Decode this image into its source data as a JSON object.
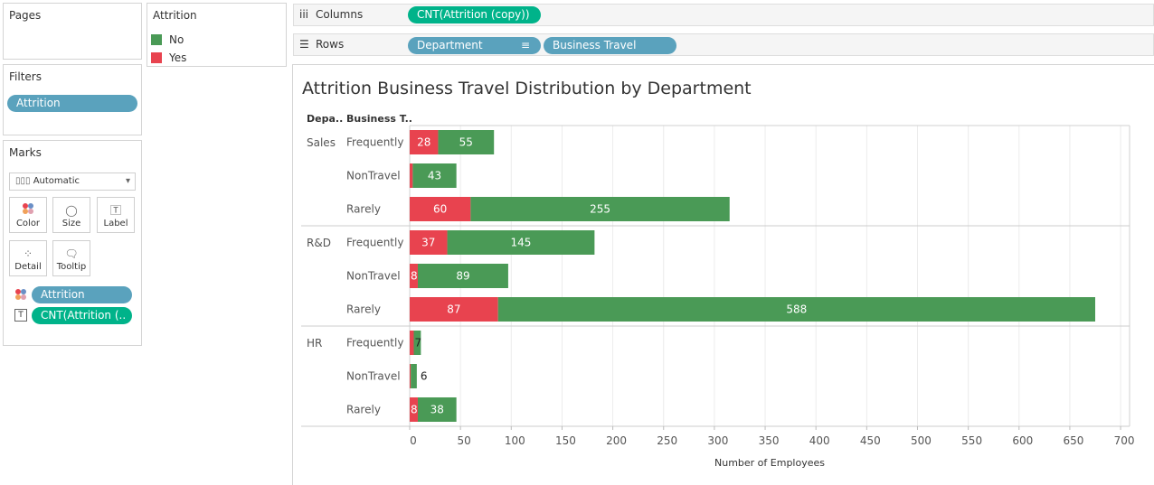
{
  "pages_panel": {
    "title": "Pages"
  },
  "filters_panel": {
    "title": "Filters",
    "pill": "Attrition"
  },
  "marks_panel": {
    "title": "Marks",
    "mark_type": "Automatic",
    "buttons": [
      {
        "label": "Color",
        "icon": "color-dots-icon"
      },
      {
        "label": "Size",
        "icon": "size-icon"
      },
      {
        "label": "Label",
        "icon": "label-icon"
      },
      {
        "label": "Detail",
        "icon": "detail-icon"
      },
      {
        "label": "Tooltip",
        "icon": "tooltip-icon"
      }
    ],
    "pills": [
      "Attrition",
      "CNT(Attrition (.."
    ]
  },
  "legend": {
    "title": "Attrition",
    "items": [
      {
        "label": "No",
        "color": "#4a9a56"
      },
      {
        "label": "Yes",
        "color": "#e8434f"
      }
    ]
  },
  "columns_shelf": {
    "label": "Columns",
    "pill": "CNT(Attrition (copy))"
  },
  "rows_shelf": {
    "label": "Rows",
    "pills": [
      "Department",
      "Business Travel"
    ]
  },
  "chart_data": {
    "type": "bar",
    "orientation": "horizontal",
    "stacked": true,
    "title": "Attrition Business Travel Distribution by Department",
    "row_headers": [
      "Depa..",
      "Business T.."
    ],
    "xlabel": "Number of Employees",
    "xlim": [
      0,
      700
    ],
    "xticks": [
      0,
      50,
      100,
      150,
      200,
      250,
      300,
      350,
      400,
      450,
      500,
      550,
      600,
      650,
      700
    ],
    "departments": [
      "Sales",
      "R&D",
      "HR"
    ],
    "categories": [
      "Frequently",
      "NonTravel",
      "Rarely"
    ],
    "series": [
      {
        "name": "Yes",
        "color": "#e8434f",
        "values": [
          [
            28,
            3,
            60
          ],
          [
            37,
            8,
            87
          ],
          [
            4,
            1,
            8
          ]
        ],
        "labels": [
          [
            "28",
            "",
            "60"
          ],
          [
            "37",
            "8",
            "87"
          ],
          [
            "",
            "",
            "8"
          ]
        ]
      },
      {
        "name": "No",
        "color": "#4a9a56",
        "values": [
          [
            55,
            43,
            255
          ],
          [
            145,
            89,
            588
          ],
          [
            7,
            6,
            38
          ]
        ],
        "labels": [
          [
            "55",
            "43",
            "255"
          ],
          [
            "145",
            "89",
            "588"
          ],
          [
            "7",
            "6",
            "38"
          ]
        ]
      }
    ],
    "grid": true
  }
}
